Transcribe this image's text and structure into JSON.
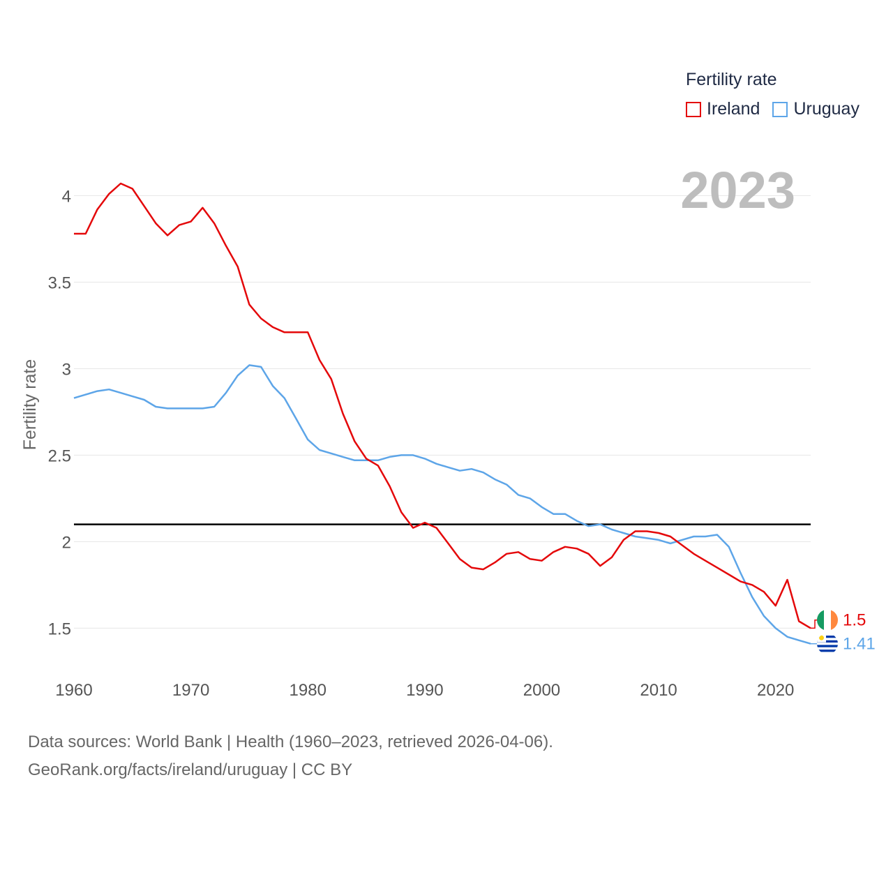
{
  "legend": {
    "title": "Fertility rate",
    "items": [
      {
        "label": "Ireland",
        "color": "#e4080a"
      },
      {
        "label": "Uruguay",
        "color": "#5da5e8"
      }
    ]
  },
  "year_display": "2023",
  "source": {
    "line1": "Data sources: World Bank | Health (1960–2023, retrieved 2026-04-06).",
    "line2": "GeoRank.org/facts/ireland/uruguay | CC BY"
  },
  "chart_data": {
    "type": "line",
    "title": "Fertility rate",
    "xlabel": "",
    "ylabel": "Fertility rate",
    "xlim": [
      1960,
      2023
    ],
    "ylim": [
      1.3,
      4.3
    ],
    "x_ticks": [
      1960,
      1970,
      1980,
      1990,
      2000,
      2010,
      2020
    ],
    "y_ticks": [
      1.5,
      2,
      2.5,
      3,
      3.5,
      4
    ],
    "grid": true,
    "legend_position": "top-right",
    "reference_line": {
      "y": 2.1,
      "color": "#000000"
    },
    "x": [
      1960,
      1961,
      1962,
      1963,
      1964,
      1965,
      1966,
      1967,
      1968,
      1969,
      1970,
      1971,
      1972,
      1973,
      1974,
      1975,
      1976,
      1977,
      1978,
      1979,
      1980,
      1981,
      1982,
      1983,
      1984,
      1985,
      1986,
      1987,
      1988,
      1989,
      1990,
      1991,
      1992,
      1993,
      1994,
      1995,
      1996,
      1997,
      1998,
      1999,
      2000,
      2001,
      2002,
      2003,
      2004,
      2005,
      2006,
      2007,
      2008,
      2009,
      2010,
      2011,
      2012,
      2013,
      2014,
      2015,
      2016,
      2017,
      2018,
      2019,
      2020,
      2021,
      2022,
      2023
    ],
    "series": [
      {
        "name": "Ireland",
        "color": "#e4080a",
        "end_label": "1.5",
        "values": [
          3.78,
          3.78,
          3.92,
          4.01,
          4.07,
          4.04,
          3.94,
          3.84,
          3.77,
          3.83,
          3.85,
          3.93,
          3.84,
          3.71,
          3.59,
          3.37,
          3.29,
          3.24,
          3.21,
          3.21,
          3.21,
          3.05,
          2.94,
          2.74,
          2.58,
          2.48,
          2.44,
          2.32,
          2.17,
          2.08,
          2.11,
          2.08,
          1.99,
          1.9,
          1.85,
          1.84,
          1.88,
          1.93,
          1.94,
          1.9,
          1.89,
          1.94,
          1.97,
          1.96,
          1.93,
          1.86,
          1.91,
          2.01,
          2.06,
          2.06,
          2.05,
          2.03,
          1.98,
          1.93,
          1.89,
          1.85,
          1.81,
          1.77,
          1.75,
          1.71,
          1.63,
          1.78,
          1.54,
          1.5
        ]
      },
      {
        "name": "Uruguay",
        "color": "#5da5e8",
        "end_label": "1.41",
        "values": [
          2.83,
          2.85,
          2.87,
          2.88,
          2.86,
          2.84,
          2.82,
          2.78,
          2.77,
          2.77,
          2.77,
          2.77,
          2.78,
          2.86,
          2.96,
          3.02,
          3.01,
          2.9,
          2.83,
          2.71,
          2.59,
          2.53,
          2.51,
          2.49,
          2.47,
          2.47,
          2.47,
          2.49,
          2.5,
          2.5,
          2.48,
          2.45,
          2.43,
          2.41,
          2.42,
          2.4,
          2.36,
          2.33,
          2.27,
          2.25,
          2.2,
          2.16,
          2.16,
          2.12,
          2.09,
          2.1,
          2.07,
          2.05,
          2.03,
          2.02,
          2.01,
          1.99,
          2.01,
          2.03,
          2.03,
          2.04,
          1.97,
          1.82,
          1.68,
          1.57,
          1.5,
          1.45,
          1.43,
          1.41
        ]
      }
    ]
  }
}
